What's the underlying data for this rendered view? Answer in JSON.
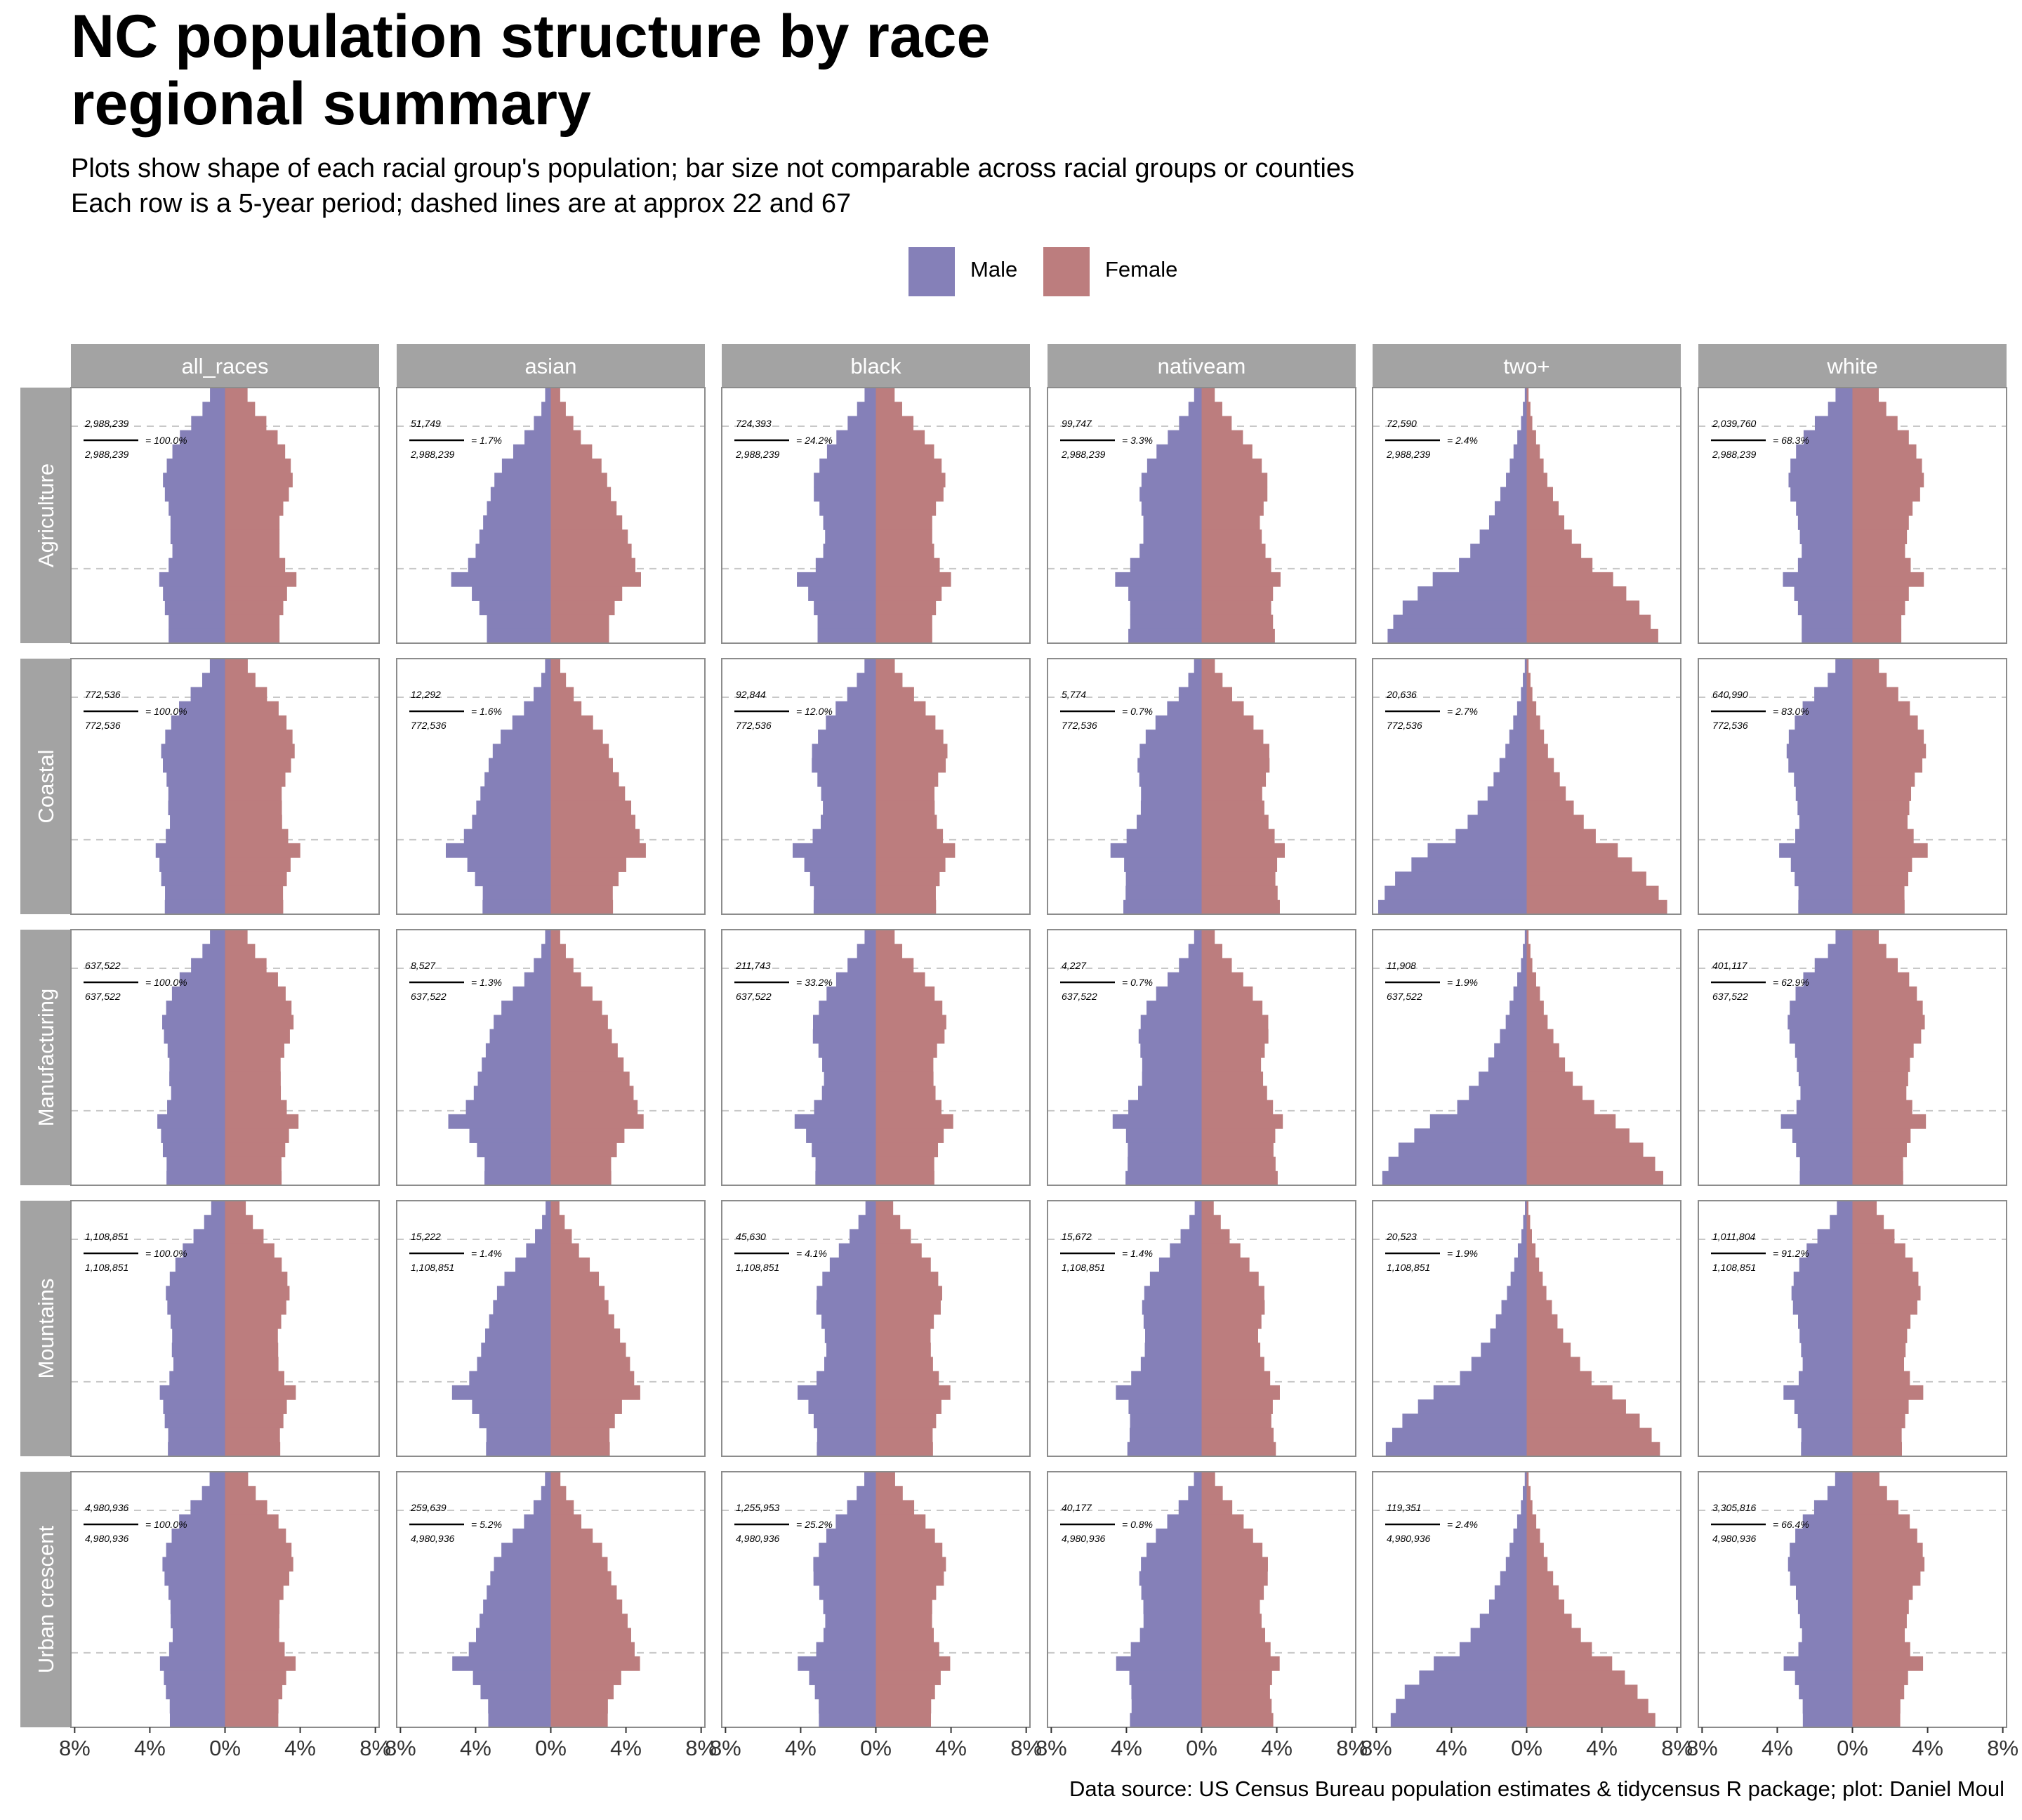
{
  "title_lines": [
    "NC population structure by race",
    "regional summary"
  ],
  "subtitle_lines": [
    "Plots show shape of each racial group's population; bar size not comparable across racial groups or counties",
    "Each row is a 5-year period; dashed lines are at approx 22 and 67"
  ],
  "legend": [
    {
      "label": "Male",
      "color": "#8580b8"
    },
    {
      "label": "Female",
      "color": "#bc7d7e"
    }
  ],
  "caption": "Data source: US Census Bureau population estimates & tidycensus R package; plot: Daniel Moul",
  "colors": {
    "male": "#8580b8",
    "female": "#bc7d7e",
    "strip": "#a3a3a3",
    "panel_border": "#8c8c8c",
    "dashed": "#c8c8c8"
  },
  "chart_data": {
    "type": "bar",
    "orientation": "horizontal population pyramid",
    "columns": [
      "all_races",
      "asian",
      "black",
      "nativeam",
      "two+",
      "white"
    ],
    "rows": [
      "Agriculture",
      "Coastal",
      "Manufacturing",
      "Mountains",
      "Urban crescent"
    ],
    "age_groups_count": 18,
    "age_group_order": "oldest (top) to youngest (bottom)",
    "dashed_reference_ages": [
      22,
      67
    ],
    "x_ticks": [
      "8%",
      "4%",
      "0%",
      "4%",
      "8%"
    ],
    "xlim": [
      -8.2,
      8.2
    ],
    "annotations": {
      "Agriculture": {
        "total": "2,988,239",
        "all_races": {
          "count": "2,988,239",
          "pct": "= 100.0%"
        },
        "asian": {
          "count": "51,749",
          "pct": "= 1.7%"
        },
        "black": {
          "count": "724,393",
          "pct": "= 24.2%"
        },
        "nativeam": {
          "count": "99,747",
          "pct": "= 3.3%"
        },
        "two+": {
          "count": "72,590",
          "pct": "= 2.4%"
        },
        "white": {
          "count": "2,039,760",
          "pct": "= 68.3%"
        }
      },
      "Coastal": {
        "total": "772,536",
        "all_races": {
          "count": "772,536",
          "pct": "= 100.0%"
        },
        "asian": {
          "count": "12,292",
          "pct": "= 1.6%"
        },
        "black": {
          "count": "92,844",
          "pct": "= 12.0%"
        },
        "nativeam": {
          "count": "5,774",
          "pct": "= 0.7%"
        },
        "two+": {
          "count": "20,636",
          "pct": "= 2.7%"
        },
        "white": {
          "count": "640,990",
          "pct": "= 83.0%"
        }
      },
      "Manufacturing": {
        "total": "637,522",
        "all_races": {
          "count": "637,522",
          "pct": "= 100.0%"
        },
        "asian": {
          "count": "8,527",
          "pct": "= 1.3%"
        },
        "black": {
          "count": "211,743",
          "pct": "= 33.2%"
        },
        "nativeam": {
          "count": "4,227",
          "pct": "= 0.7%"
        },
        "two+": {
          "count": "11,908",
          "pct": "= 1.9%"
        },
        "white": {
          "count": "401,117",
          "pct": "= 62.9%"
        }
      },
      "Mountains": {
        "total": "1,108,851",
        "all_races": {
          "count": "1,108,851",
          "pct": "= 100.0%"
        },
        "asian": {
          "count": "15,222",
          "pct": "= 1.4%"
        },
        "black": {
          "count": "45,630",
          "pct": "= 4.1%"
        },
        "nativeam": {
          "count": "15,672",
          "pct": "= 1.4%"
        },
        "two+": {
          "count": "20,523",
          "pct": "= 1.9%"
        },
        "white": {
          "count": "1,011,804",
          "pct": "= 91.2%"
        }
      },
      "Urban crescent": {
        "total": "4,980,936",
        "all_races": {
          "count": "4,980,936",
          "pct": "= 100.0%"
        },
        "asian": {
          "count": "259,639",
          "pct": "= 5.2%"
        },
        "black": {
          "count": "1,255,953",
          "pct": "= 25.2%"
        },
        "nativeam": {
          "count": "40,177",
          "pct": "= 0.8%"
        },
        "two+": {
          "count": "119,351",
          "pct": "= 2.4%"
        },
        "white": {
          "count": "3,305,816",
          "pct": "= 66.4%"
        }
      }
    },
    "profiles": {
      "all_races": {
        "male": [
          0.8,
          1.2,
          1.8,
          2.4,
          2.8,
          3.1,
          3.3,
          3.2,
          3.0,
          2.9,
          2.9,
          2.8,
          3.0,
          3.5,
          3.3,
          3.2,
          3.0,
          3.0
        ],
        "female": [
          1.2,
          1.6,
          2.2,
          2.8,
          3.2,
          3.5,
          3.6,
          3.4,
          3.1,
          2.9,
          2.9,
          2.9,
          3.2,
          3.8,
          3.3,
          3.1,
          2.9,
          2.9
        ]
      },
      "asian": {
        "male": [
          0.3,
          0.5,
          0.9,
          1.4,
          2.0,
          2.6,
          3.0,
          3.2,
          3.4,
          3.6,
          3.8,
          4.0,
          4.4,
          5.3,
          4.2,
          3.8,
          3.4,
          3.4
        ],
        "female": [
          0.5,
          0.8,
          1.2,
          1.6,
          2.2,
          2.7,
          3.0,
          3.2,
          3.5,
          3.8,
          4.1,
          4.3,
          4.5,
          4.8,
          3.8,
          3.4,
          3.1,
          3.1
        ]
      },
      "black": {
        "male": [
          0.6,
          1.0,
          1.5,
          2.1,
          2.6,
          3.0,
          3.3,
          3.3,
          3.0,
          2.8,
          2.7,
          2.8,
          3.2,
          4.2,
          3.6,
          3.3,
          3.1,
          3.1
        ],
        "female": [
          1.0,
          1.4,
          2.0,
          2.6,
          3.1,
          3.5,
          3.7,
          3.6,
          3.2,
          3.0,
          3.0,
          3.1,
          3.4,
          4.0,
          3.5,
          3.2,
          3.0,
          3.0
        ]
      },
      "nativeam": {
        "male": [
          0.4,
          0.7,
          1.2,
          1.8,
          2.4,
          2.9,
          3.2,
          3.3,
          3.2,
          3.1,
          3.1,
          3.3,
          3.8,
          4.6,
          3.9,
          3.8,
          3.8,
          3.9
        ],
        "female": [
          0.7,
          1.1,
          1.6,
          2.2,
          2.7,
          3.2,
          3.5,
          3.5,
          3.3,
          3.1,
          3.2,
          3.4,
          3.7,
          4.2,
          3.8,
          3.7,
          3.8,
          3.9
        ]
      },
      "two+": {
        "male": [
          0.1,
          0.2,
          0.3,
          0.5,
          0.7,
          0.9,
          1.1,
          1.4,
          1.7,
          2.0,
          2.5,
          3.0,
          3.6,
          5.0,
          5.8,
          6.6,
          7.1,
          7.4
        ],
        "female": [
          0.1,
          0.2,
          0.3,
          0.5,
          0.7,
          0.9,
          1.1,
          1.4,
          1.7,
          2.0,
          2.4,
          2.9,
          3.5,
          4.6,
          5.3,
          6.0,
          6.6,
          7.0
        ]
      },
      "white": {
        "male": [
          0.9,
          1.3,
          2.0,
          2.6,
          3.0,
          3.3,
          3.4,
          3.3,
          3.0,
          2.9,
          2.8,
          2.7,
          2.9,
          3.7,
          3.1,
          2.9,
          2.7,
          2.7
        ],
        "female": [
          1.4,
          1.8,
          2.4,
          3.0,
          3.4,
          3.7,
          3.8,
          3.6,
          3.2,
          3.0,
          2.9,
          2.8,
          3.1,
          3.8,
          3.0,
          2.8,
          2.6,
          2.6
        ]
      }
    }
  }
}
